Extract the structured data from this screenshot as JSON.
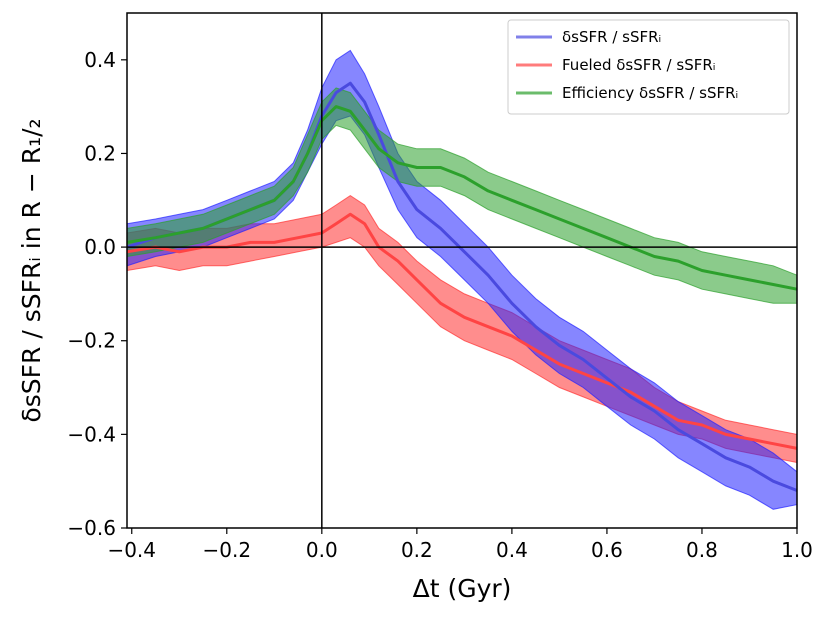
{
  "chart_data": {
    "type": "line",
    "title": "",
    "xlabel": "Δt (Gyr)",
    "ylabel": "δsSFR / sSFRᵢ in R − R₁/₂",
    "xlim": [
      -0.41,
      1.0
    ],
    "ylim": [
      -0.6,
      0.5
    ],
    "xticks": [
      -0.4,
      -0.2,
      0.0,
      0.2,
      0.4,
      0.6,
      0.8,
      1.0
    ],
    "xtick_labels": [
      "−0.4",
      "−0.2",
      "0.0",
      "0.2",
      "0.4",
      "0.6",
      "0.8",
      "1.0"
    ],
    "yticks": [
      -0.6,
      -0.4,
      -0.2,
      0.0,
      0.2,
      0.4
    ],
    "ytick_labels": [
      "−0.6",
      "−0.4",
      "−0.2",
      "0.0",
      "0.2",
      "0.4"
    ],
    "reference_lines": {
      "x": 0.0,
      "y": 0.0
    },
    "legend_position": "top-right",
    "series": [
      {
        "name": "δsSFR / sSFRᵢ",
        "color": "#4a4adf",
        "fill_color": "#2222ff",
        "x": [
          -0.41,
          -0.35,
          -0.3,
          -0.25,
          -0.2,
          -0.15,
          -0.1,
          -0.06,
          -0.03,
          0.0,
          0.03,
          0.06,
          0.09,
          0.12,
          0.16,
          0.2,
          0.25,
          0.3,
          0.35,
          0.4,
          0.45,
          0.5,
          0.55,
          0.6,
          0.65,
          0.7,
          0.75,
          0.8,
          0.85,
          0.9,
          0.95,
          1.0
        ],
        "mean": [
          0.0,
          0.02,
          0.03,
          0.04,
          0.06,
          0.08,
          0.1,
          0.14,
          0.2,
          0.28,
          0.33,
          0.35,
          0.31,
          0.24,
          0.14,
          0.08,
          0.04,
          -0.01,
          -0.06,
          -0.12,
          -0.17,
          -0.21,
          -0.24,
          -0.28,
          -0.32,
          -0.35,
          -0.39,
          -0.42,
          -0.45,
          -0.47,
          -0.5,
          -0.52
        ],
        "lower": [
          -0.04,
          -0.02,
          -0.01,
          0.0,
          0.02,
          0.04,
          0.06,
          0.1,
          0.16,
          0.22,
          0.27,
          0.28,
          0.24,
          0.17,
          0.08,
          0.02,
          -0.02,
          -0.07,
          -0.12,
          -0.18,
          -0.23,
          -0.27,
          -0.3,
          -0.34,
          -0.38,
          -0.41,
          -0.45,
          -0.48,
          -0.51,
          -0.53,
          -0.56,
          -0.55
        ],
        "upper": [
          0.05,
          0.06,
          0.07,
          0.08,
          0.1,
          0.12,
          0.14,
          0.18,
          0.25,
          0.34,
          0.4,
          0.42,
          0.37,
          0.3,
          0.2,
          0.14,
          0.1,
          0.05,
          0.0,
          -0.06,
          -0.11,
          -0.15,
          -0.18,
          -0.22,
          -0.26,
          -0.29,
          -0.33,
          -0.36,
          -0.39,
          -0.41,
          -0.44,
          -0.48
        ]
      },
      {
        "name": "Fueled δsSFR / sSFRᵢ",
        "color": "#ff4444",
        "fill_color": "#ff3030",
        "x": [
          -0.41,
          -0.35,
          -0.3,
          -0.25,
          -0.2,
          -0.15,
          -0.1,
          -0.05,
          0.0,
          0.03,
          0.06,
          0.09,
          0.12,
          0.16,
          0.2,
          0.25,
          0.3,
          0.35,
          0.4,
          0.45,
          0.5,
          0.55,
          0.6,
          0.65,
          0.7,
          0.75,
          0.8,
          0.85,
          0.9,
          0.95,
          1.0
        ],
        "mean": [
          -0.01,
          0.0,
          -0.01,
          0.0,
          0.0,
          0.01,
          0.01,
          0.02,
          0.03,
          0.05,
          0.07,
          0.05,
          0.0,
          -0.03,
          -0.07,
          -0.12,
          -0.15,
          -0.17,
          -0.19,
          -0.22,
          -0.25,
          -0.27,
          -0.29,
          -0.31,
          -0.34,
          -0.37,
          -0.38,
          -0.4,
          -0.41,
          -0.42,
          -0.43
        ],
        "lower": [
          -0.05,
          -0.04,
          -0.05,
          -0.04,
          -0.04,
          -0.03,
          -0.02,
          -0.01,
          0.0,
          0.01,
          0.02,
          0.0,
          -0.04,
          -0.08,
          -0.12,
          -0.17,
          -0.2,
          -0.22,
          -0.24,
          -0.27,
          -0.3,
          -0.32,
          -0.34,
          -0.36,
          -0.38,
          -0.4,
          -0.41,
          -0.43,
          -0.44,
          -0.45,
          -0.46
        ],
        "upper": [
          0.03,
          0.04,
          0.03,
          0.04,
          0.04,
          0.05,
          0.05,
          0.06,
          0.07,
          0.09,
          0.11,
          0.09,
          0.04,
          0.01,
          -0.03,
          -0.07,
          -0.1,
          -0.12,
          -0.14,
          -0.17,
          -0.2,
          -0.22,
          -0.24,
          -0.26,
          -0.3,
          -0.33,
          -0.35,
          -0.37,
          -0.38,
          -0.39,
          -0.4
        ]
      },
      {
        "name": "Efficiency δsSFR / sSFRᵢ",
        "color": "#2ca02c",
        "fill_color": "#2ca02c",
        "x": [
          -0.41,
          -0.35,
          -0.3,
          -0.25,
          -0.2,
          -0.15,
          -0.1,
          -0.06,
          -0.03,
          0.0,
          0.03,
          0.06,
          0.09,
          0.12,
          0.16,
          0.2,
          0.25,
          0.3,
          0.35,
          0.4,
          0.45,
          0.5,
          0.55,
          0.6,
          0.65,
          0.7,
          0.75,
          0.8,
          0.85,
          0.9,
          0.95,
          1.0
        ],
        "mean": [
          0.01,
          0.02,
          0.03,
          0.04,
          0.06,
          0.08,
          0.1,
          0.14,
          0.2,
          0.27,
          0.3,
          0.29,
          0.25,
          0.21,
          0.18,
          0.17,
          0.17,
          0.15,
          0.12,
          0.1,
          0.08,
          0.06,
          0.04,
          0.02,
          0.0,
          -0.02,
          -0.03,
          -0.05,
          -0.06,
          -0.07,
          -0.08,
          -0.09
        ],
        "lower": [
          -0.02,
          -0.01,
          0.0,
          0.01,
          0.03,
          0.05,
          0.07,
          0.11,
          0.16,
          0.23,
          0.26,
          0.25,
          0.21,
          0.17,
          0.14,
          0.13,
          0.13,
          0.11,
          0.08,
          0.06,
          0.04,
          0.02,
          0.0,
          -0.02,
          -0.04,
          -0.06,
          -0.07,
          -0.09,
          -0.1,
          -0.11,
          -0.12,
          -0.12
        ],
        "upper": [
          0.04,
          0.05,
          0.06,
          0.07,
          0.09,
          0.11,
          0.13,
          0.17,
          0.24,
          0.31,
          0.34,
          0.33,
          0.29,
          0.25,
          0.22,
          0.21,
          0.21,
          0.19,
          0.16,
          0.14,
          0.12,
          0.1,
          0.08,
          0.06,
          0.04,
          0.02,
          0.01,
          -0.01,
          -0.02,
          -0.03,
          -0.04,
          -0.06
        ]
      }
    ]
  }
}
